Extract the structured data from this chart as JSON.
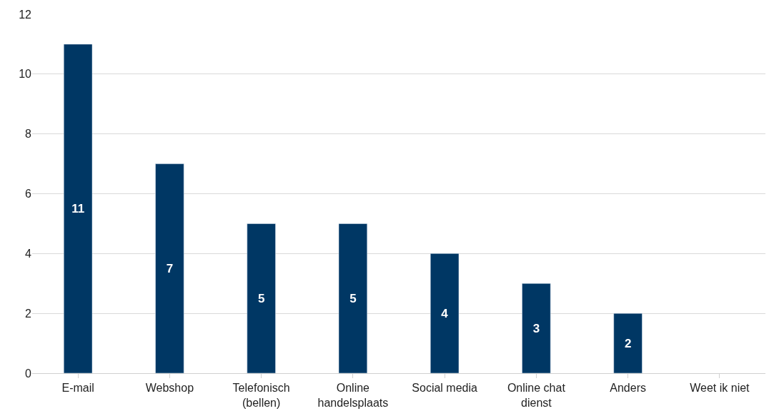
{
  "chart_data": {
    "type": "bar",
    "categories": [
      "E-mail",
      "Webshop",
      "Telefonisch\n(bellen)",
      "Online\nhandelsplaats",
      "Social media",
      "Online chat\ndienst",
      "Anders",
      "Weet ik niet"
    ],
    "values": [
      11,
      7,
      5,
      5,
      4,
      3,
      2,
      null
    ],
    "value_labels": [
      "11",
      "7",
      "5",
      "5",
      "4",
      "3",
      "2",
      null
    ],
    "color": "#003764",
    "ylim": [
      0,
      12
    ],
    "yticks": [
      0,
      2,
      4,
      6,
      8,
      10,
      12
    ],
    "grid": "y",
    "legend": false
  }
}
